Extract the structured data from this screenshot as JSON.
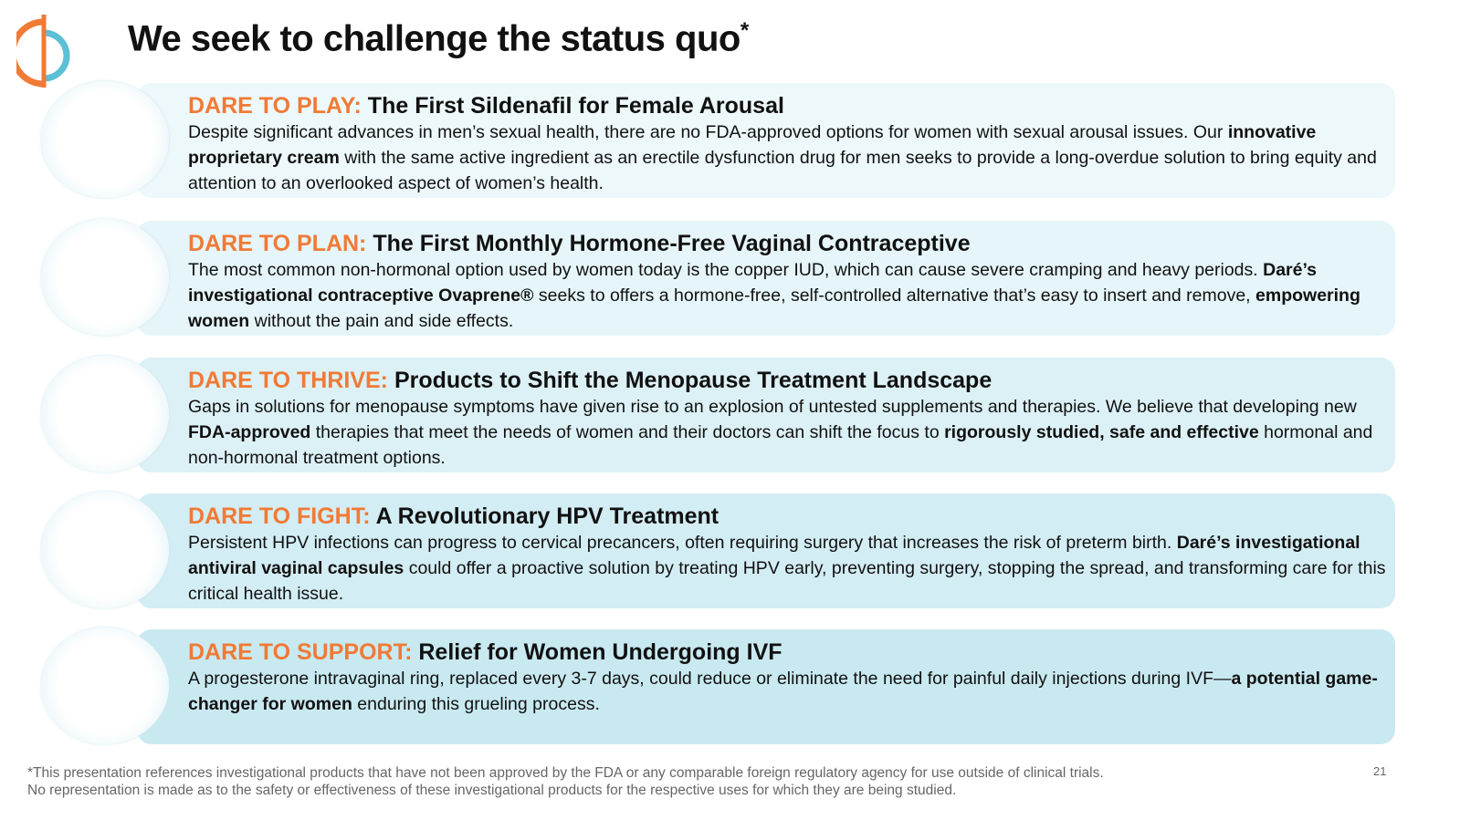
{
  "header": {
    "title": "We seek to challenge the status quo",
    "title_mark": "*"
  },
  "items": [
    {
      "label": "DARE TO PLAY:",
      "heading": "The First Sildenafil for Female Arousal",
      "body": [
        {
          "text": "Despite significant advances in men’s sexual health, there are no FDA-approved options for women with sexual arousal issues. Our ",
          "bold": false
        },
        {
          "text": "innovative proprietary cream",
          "bold": true
        },
        {
          "text": " with the same active ingredient as an erectile dysfunction drug for men seeks to provide a long-overdue solution to bring equity and attention to an overlooked aspect of women’s health.",
          "bold": false
        }
      ]
    },
    {
      "label": "DARE TO PLAN:",
      "heading": "The First Monthly Hormone-Free Vaginal Contraceptive",
      "body": [
        {
          "text": "The most common non-hormonal option used by women today is the copper IUD, which can cause severe cramping and heavy periods. ",
          "bold": false
        },
        {
          "text": "Daré’s investigational contraceptive Ovaprene®",
          "bold": true
        },
        {
          "text": " seeks to offers a hormone-free, self-controlled alternative that’s easy to insert and remove, ",
          "bold": false
        },
        {
          "text": "empowering women",
          "bold": true
        },
        {
          "text": " without the pain and side effects.",
          "bold": false
        }
      ]
    },
    {
      "label": "DARE TO THRIVE:",
      "heading": "Products to Shift the Menopause Treatment Landscape",
      "body": [
        {
          "text": "Gaps in solutions for menopause symptoms have given rise to an explosion of untested supplements and therapies. We believe that developing new ",
          "bold": false
        },
        {
          "text": "FDA-approved",
          "bold": true
        },
        {
          "text": " therapies that meet the needs of women and their doctors can shift the focus to ",
          "bold": false
        },
        {
          "text": "rigorously studied, safe and effective",
          "bold": true
        },
        {
          "text": " hormonal and non-hormonal treatment options.",
          "bold": false
        }
      ]
    },
    {
      "label": "DARE TO FIGHT:",
      "heading": "A Revolutionary HPV Treatment",
      "body": [
        {
          "text": "Persistent HPV infections can progress to cervical precancers, often requiring surgery that increases the risk of preterm birth. ",
          "bold": false
        },
        {
          "text": "Daré’s investigational antiviral vaginal capsules",
          "bold": true
        },
        {
          "text": " could offer a proactive solution by treating HPV early, preventing surgery, stopping the spread, and transforming care for this critical health issue.",
          "bold": false
        }
      ]
    },
    {
      "label": "DARE TO SUPPORT:",
      "heading": "Relief for Women Undergoing IVF",
      "body": [
        {
          "text": "A progesterone intravaginal ring, replaced every 3-7 days, could reduce or eliminate the need for painful daily injections during IVF—",
          "bold": false
        },
        {
          "text": "a potential game-changer for women",
          "bold": true
        },
        {
          "text": " enduring this grueling process.",
          "bold": false
        }
      ]
    }
  ],
  "footer": {
    "note": [
      "*This presentation references investigational products that have not been approved by the FDA or any comparable foreign regulatory agency for use outside of clinical trials.",
      "No representation is made as to the safety or effectiveness of these investigational products for the respective uses for which they are being studied."
    ],
    "page_number": "21"
  }
}
